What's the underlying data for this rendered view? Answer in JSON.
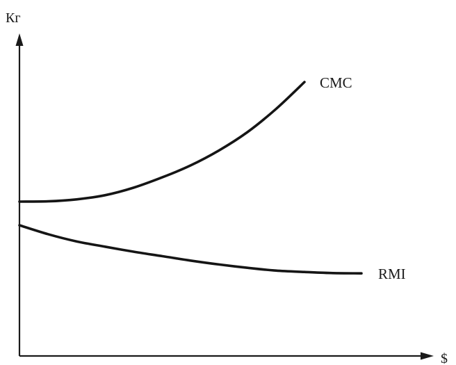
{
  "chart_data": {
    "type": "line",
    "title": "",
    "xlabel": "$",
    "ylabel": "Кг",
    "grid": false,
    "legend": "none",
    "ticks": "none",
    "series": [
      {
        "name": "CMC",
        "x": [
          0,
          10,
          20,
          30,
          40,
          50,
          60,
          70,
          80,
          90,
          100
        ],
        "y": [
          20.0,
          20.1,
          20.8,
          22.3,
          25.0,
          28.7,
          33.0,
          38.4,
          45.0,
          53.3,
          63.0
        ]
      },
      {
        "name": "RMI",
        "x": [
          0,
          10,
          20,
          30,
          40,
          50,
          60,
          70,
          80,
          90,
          100,
          110,
          120
        ],
        "y": [
          11.5,
          8.3,
          5.7,
          3.8,
          2.0,
          0.4,
          -1.2,
          -2.6,
          -3.8,
          -4.8,
          -5.3,
          -5.7,
          -5.8
        ]
      }
    ]
  }
}
